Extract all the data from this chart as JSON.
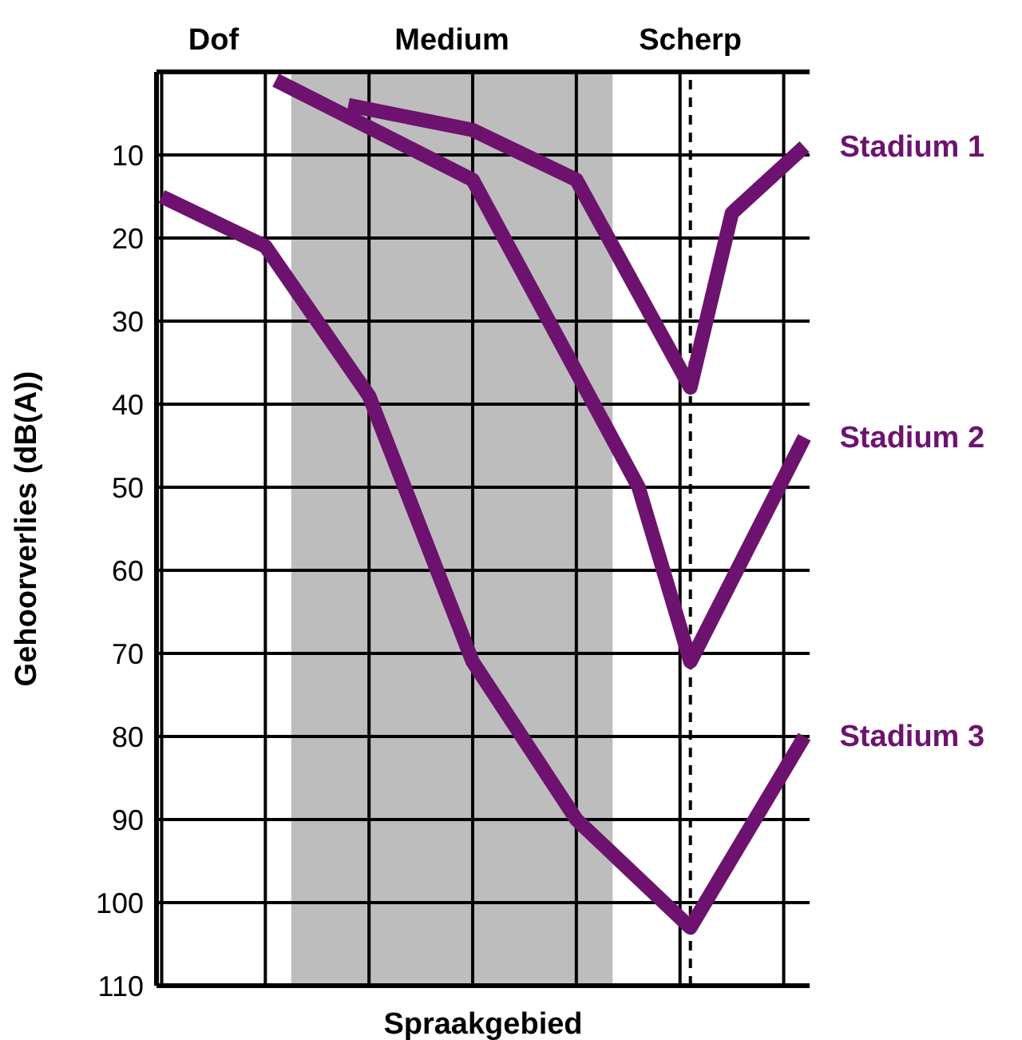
{
  "chart_data": {
    "type": "line",
    "ylabel": "Gehoorverlies (dB(A))",
    "xlabel": "Spraakgebied",
    "categories": [
      null,
      null,
      null,
      null,
      null,
      null,
      null,
      null,
      null,
      null,
      null,
      null,
      null,
      null,
      null,
      null,
      null,
      null,
      null,
      null,
      null,
      null,
      null,
      null,
      null,
      null,
      null,
      null,
      null,
      null,
      null,
      null,
      null,
      null,
      null,
      null,
      null,
      null,
      null,
      null,
      null,
      null,
      null,
      null,
      null,
      null,
      null,
      null,
      null,
      null,
      null,
      null,
      null,
      null,
      null,
      null,
      null,
      null,
      null,
      null,
      null,
      null,
      null
    ],
    "ylim": [
      110,
      0
    ],
    "yticks": [
      10,
      20,
      30,
      40,
      50,
      60,
      70,
      80,
      90,
      100,
      110
    ],
    "grid": true,
    "legend": false,
    "tick_labels": "y",
    "marker": "none",
    "line_style": "solid",
    "series": [
      {
        "name": "Stadium 1",
        "color": "#6e1270",
        "values": [
          null,
          null,
          null,
          null,
          null,
          null,
          null,
          null,
          null,
          null,
          null,
          null,
          null,
          null,
          null,
          null,
          null,
          null,
          4,
          null,
          null,
          null,
          null,
          null,
          null,
          null,
          null,
          null,
          null,
          null,
          7,
          null,
          null,
          null,
          null,
          null,
          null,
          null,
          null,
          null,
          13,
          null,
          null,
          null,
          null,
          null,
          null,
          null,
          null,
          null,
          null,
          38,
          null,
          null,
          null,
          17,
          null,
          null,
          null,
          null,
          null,
          null,
          9
        ]
      },
      {
        "name": "Stadium 2",
        "color": "#6e1270",
        "values": [
          null,
          null,
          null,
          null,
          null,
          null,
          null,
          null,
          null,
          null,
          null,
          1,
          null,
          null,
          null,
          null,
          null,
          null,
          null,
          null,
          null,
          null,
          null,
          null,
          null,
          null,
          null,
          null,
          null,
          null,
          13,
          null,
          null,
          null,
          null,
          null,
          null,
          null,
          null,
          null,
          null,
          null,
          null,
          null,
          null,
          null,
          50,
          null,
          null,
          null,
          null,
          71,
          null,
          null,
          null,
          null,
          null,
          null,
          null,
          null,
          null,
          null,
          44
        ]
      },
      {
        "name": "Stadium 3",
        "color": "#6e1270",
        "values": [
          15,
          null,
          null,
          null,
          null,
          null,
          null,
          null,
          null,
          null,
          21,
          null,
          null,
          null,
          null,
          null,
          null,
          null,
          null,
          null,
          39,
          null,
          null,
          null,
          null,
          null,
          null,
          null,
          null,
          null,
          71,
          null,
          null,
          null,
          null,
          null,
          null,
          null,
          null,
          null,
          90,
          null,
          null,
          null,
          null,
          null,
          null,
          null,
          null,
          null,
          null,
          103,
          null,
          null,
          null,
          null,
          null,
          null,
          null,
          null,
          null,
          null,
          80
        ]
      }
    ],
    "annotations": [
      "Dof",
      "Medium",
      "Scherp"
    ]
  }
}
